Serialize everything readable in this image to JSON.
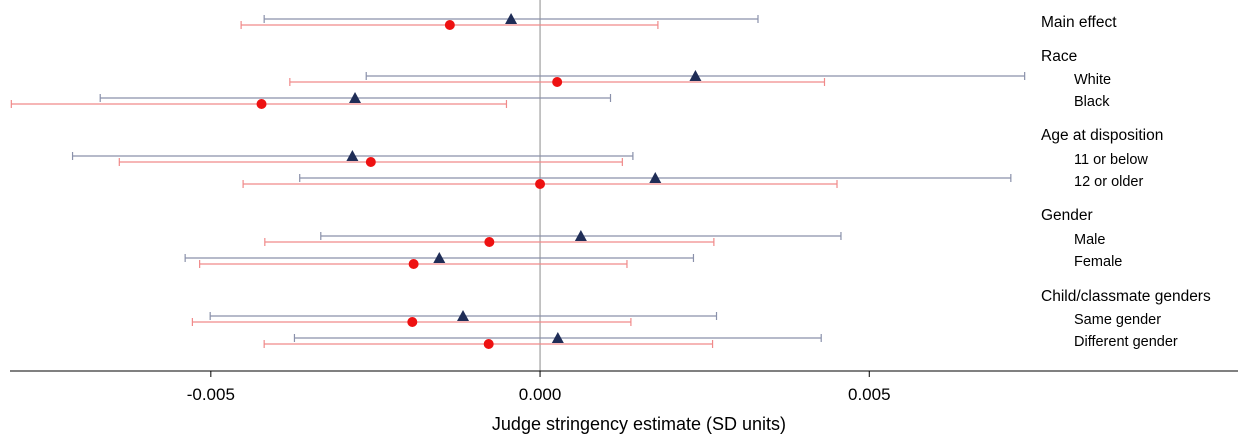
{
  "chart_data": {
    "type": "scatter",
    "subtype": "coefficient-plot-with-error-bars",
    "xlabel": "Judge stringency estimate (SD units)",
    "xlim": [
      -0.00805,
      0.0106
    ],
    "x_ticks": [
      {
        "value": -0.005,
        "label": "-0.005"
      },
      {
        "value": 0.0,
        "label": "0.000"
      },
      {
        "value": 0.005,
        "label": "0.005"
      }
    ],
    "reference_line_x": 0,
    "grid": false,
    "legend": "none",
    "series": [
      {
        "marker": "triangle",
        "color": "#1f2d57",
        "ci_color": "#8a91ab"
      },
      {
        "marker": "circle",
        "color": "#ee1111",
        "ci_color": "#f08a8a"
      }
    ],
    "rows": [
      {
        "label": "Main effect",
        "kind": "heading",
        "triangle": {
          "est": -0.00044,
          "lo": -0.00419,
          "hi": 0.00331
        },
        "circle": {
          "est": -0.00137,
          "lo": -0.00454,
          "hi": 0.00179
        }
      },
      {
        "label": "Race",
        "kind": "heading"
      },
      {
        "label": "White",
        "kind": "item",
        "triangle": {
          "est": 0.00236,
          "lo": -0.00264,
          "hi": 0.00736
        },
        "circle": {
          "est": 0.00026,
          "lo": -0.0038,
          "hi": 0.00432
        }
      },
      {
        "label": "Black",
        "kind": "item",
        "triangle": {
          "est": -0.00281,
          "lo": -0.00668,
          "hi": 0.00107
        },
        "circle": {
          "est": -0.00423,
          "lo": -0.00803,
          "hi": -0.00051
        }
      },
      {
        "label": "Age at disposition",
        "kind": "heading"
      },
      {
        "label": "11 or below",
        "kind": "item",
        "triangle": {
          "est": -0.00285,
          "lo": -0.0071,
          "hi": 0.00141
        },
        "circle": {
          "est": -0.00257,
          "lo": -0.00639,
          "hi": 0.00125
        }
      },
      {
        "label": "12 or older",
        "kind": "item",
        "triangle": {
          "est": 0.00175,
          "lo": -0.00365,
          "hi": 0.00715
        },
        "circle": {
          "est": 0.0,
          "lo": -0.00451,
          "hi": 0.00451
        }
      },
      {
        "label": "Gender",
        "kind": "heading"
      },
      {
        "label": "Male",
        "kind": "item",
        "triangle": {
          "est": 0.00062,
          "lo": -0.00333,
          "hi": 0.00457
        },
        "circle": {
          "est": -0.00077,
          "lo": -0.00418,
          "hi": 0.00264
        }
      },
      {
        "label": "Female",
        "kind": "item",
        "triangle": {
          "est": -0.00153,
          "lo": -0.00539,
          "hi": 0.00233
        },
        "circle": {
          "est": -0.00192,
          "lo": -0.00517,
          "hi": 0.00132
        }
      },
      {
        "label": "Child/classmate genders",
        "kind": "heading"
      },
      {
        "label": "Same gender",
        "kind": "item",
        "triangle": {
          "est": -0.00117,
          "lo": -0.00501,
          "hi": 0.00268
        },
        "circle": {
          "est": -0.00194,
          "lo": -0.00528,
          "hi": 0.00138
        }
      },
      {
        "label": "Different gender",
        "kind": "item",
        "triangle": {
          "est": 0.00027,
          "lo": -0.00373,
          "hi": 0.00427
        },
        "circle": {
          "est": -0.00078,
          "lo": -0.00419,
          "hi": 0.00262
        }
      }
    ]
  }
}
